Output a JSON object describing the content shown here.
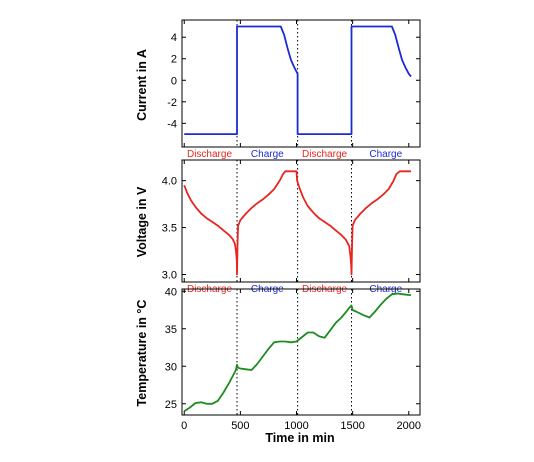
{
  "chart_data": [
    {
      "type": "line",
      "ylabel": "Current in A",
      "ylim": [
        -6.2,
        5.6
      ],
      "yticks": [
        -4,
        -2,
        0,
        2,
        4
      ],
      "xlim": [
        -20,
        2100
      ],
      "grid": false,
      "series": [
        {
          "color": "#1b2bd6",
          "x": [
            0,
            470,
            470,
            860,
            890,
            920,
            950,
            980,
            1010,
            1010,
            1490,
            1490,
            1850,
            1880,
            1910,
            1940,
            1970,
            2000,
            2020
          ],
          "y": [
            -5.0,
            -5.0,
            5.0,
            5.0,
            4.2,
            3.0,
            1.9,
            1.2,
            0.6,
            -5.0,
            -5.0,
            5.0,
            5.0,
            4.2,
            3.0,
            1.9,
            1.2,
            0.6,
            0.35
          ]
        }
      ],
      "phase_labels": [
        {
          "text": "Discharge",
          "color": "#e8251f"
        },
        {
          "text": "Charge",
          "color": "#1b2bd6"
        },
        {
          "text": "Discharge",
          "color": "#e8251f"
        },
        {
          "text": "Charge",
          "color": "#1b2bd6"
        }
      ]
    },
    {
      "type": "line",
      "ylabel": "Voltage in V",
      "ylim": [
        2.92,
        4.22
      ],
      "yticks": [
        3.0,
        3.5,
        4.0
      ],
      "xlim": [
        -20,
        2100
      ],
      "grid": false,
      "series": [
        {
          "color": "#e8251f",
          "x": [
            0,
            30,
            60,
            100,
            150,
            200,
            250,
            300,
            350,
            400,
            430,
            450,
            460,
            468,
            470,
            475,
            480,
            500,
            550,
            600,
            650,
            700,
            750,
            800,
            850,
            880,
            900,
            1000,
            1005,
            1030,
            1060,
            1100,
            1150,
            1200,
            1250,
            1300,
            1350,
            1400,
            1440,
            1470,
            1480,
            1487,
            1490,
            1495,
            1500,
            1520,
            1570,
            1620,
            1670,
            1720,
            1770,
            1820,
            1860,
            1890,
            1920,
            2020
          ],
          "y": [
            3.95,
            3.86,
            3.79,
            3.72,
            3.65,
            3.6,
            3.56,
            3.52,
            3.47,
            3.42,
            3.38,
            3.33,
            3.26,
            3.15,
            3.0,
            3.35,
            3.52,
            3.58,
            3.65,
            3.71,
            3.76,
            3.8,
            3.85,
            3.91,
            4.0,
            4.07,
            4.1,
            4.1,
            4.0,
            3.91,
            3.82,
            3.73,
            3.66,
            3.6,
            3.56,
            3.52,
            3.47,
            3.42,
            3.37,
            3.3,
            3.2,
            3.1,
            3.0,
            3.33,
            3.52,
            3.58,
            3.65,
            3.71,
            3.76,
            3.8,
            3.85,
            3.91,
            3.99,
            4.07,
            4.1,
            4.1
          ]
        }
      ],
      "phase_labels": [
        {
          "text": "Discharge",
          "color": "#e8251f"
        },
        {
          "text": "Charge",
          "color": "#1b2bd6"
        },
        {
          "text": "Discharge",
          "color": "#e8251f"
        },
        {
          "text": "Charge",
          "color": "#1b2bd6"
        }
      ]
    },
    {
      "type": "line",
      "xlabel": "Time in min",
      "ylabel": "Temperature in °C",
      "ylim": [
        23.5,
        40.3
      ],
      "yticks": [
        25,
        30,
        35,
        40
      ],
      "xlim": [
        -20,
        2100
      ],
      "xticks": [
        0,
        500,
        1000,
        1500,
        2000
      ],
      "grid": false,
      "series": [
        {
          "color": "#1e8c1e",
          "x": [
            0,
            50,
            100,
            150,
            200,
            250,
            300,
            350,
            400,
            440,
            460,
            470,
            480,
            500,
            550,
            600,
            650,
            700,
            750,
            800,
            850,
            900,
            950,
            1000,
            1050,
            1100,
            1150,
            1200,
            1250,
            1300,
            1350,
            1400,
            1440,
            1470,
            1490,
            1500,
            1530,
            1600,
            1650,
            1700,
            1750,
            1800,
            1850,
            1900,
            1950,
            2000,
            2020
          ],
          "y": [
            24.0,
            24.5,
            25.1,
            25.2,
            25.0,
            25.0,
            25.4,
            26.5,
            27.8,
            28.9,
            29.5,
            30.2,
            29.8,
            29.7,
            29.6,
            29.5,
            30.3,
            31.3,
            32.3,
            33.2,
            33.3,
            33.3,
            33.2,
            33.3,
            33.9,
            34.5,
            34.5,
            34.0,
            33.8,
            34.8,
            35.8,
            36.5,
            37.2,
            37.8,
            38.1,
            37.5,
            37.3,
            36.8,
            36.5,
            37.3,
            38.2,
            39.0,
            39.6,
            39.7,
            39.6,
            39.5,
            39.5
          ]
        }
      ]
    }
  ],
  "phase_times": [
    470,
    1010,
    1490
  ]
}
